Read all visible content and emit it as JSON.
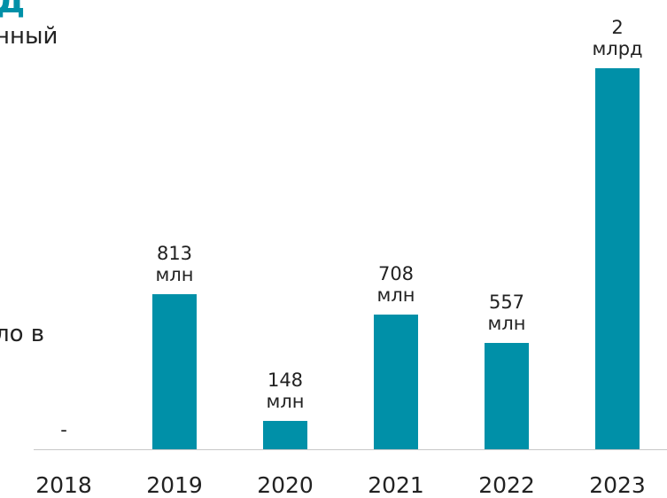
{
  "fragments": {
    "title": "д",
    "line1": "нный",
    "line2": "ло в"
  },
  "chart_data": {
    "type": "bar",
    "categories": [
      "2018",
      "2019",
      "2020",
      "2021",
      "2022",
      "2023"
    ],
    "values": [
      0,
      813,
      148,
      708,
      557,
      2000
    ],
    "value_labels": [
      "-",
      "813 млн",
      "148 млн",
      "708 млн",
      "557 млн",
      "2 млрд"
    ],
    "color": "#0090a8"
  }
}
